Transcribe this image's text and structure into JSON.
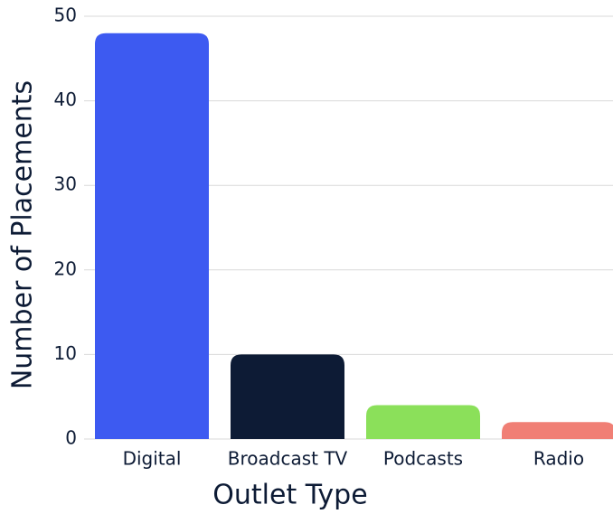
{
  "chart_data": {
    "type": "bar",
    "xlabel": "Outlet Type",
    "ylabel": "Number of Placements",
    "categories": [
      "Digital",
      "Broadcast TV",
      "Podcasts",
      "Radio"
    ],
    "values": [
      48,
      10,
      4,
      2
    ],
    "colors": [
      "#3d5af1",
      "#0d1b35",
      "#8be05a",
      "#f07f75"
    ],
    "ylim": [
      0,
      50
    ],
    "yticks": [
      0,
      10,
      20,
      30,
      40,
      50
    ],
    "grid": true
  }
}
